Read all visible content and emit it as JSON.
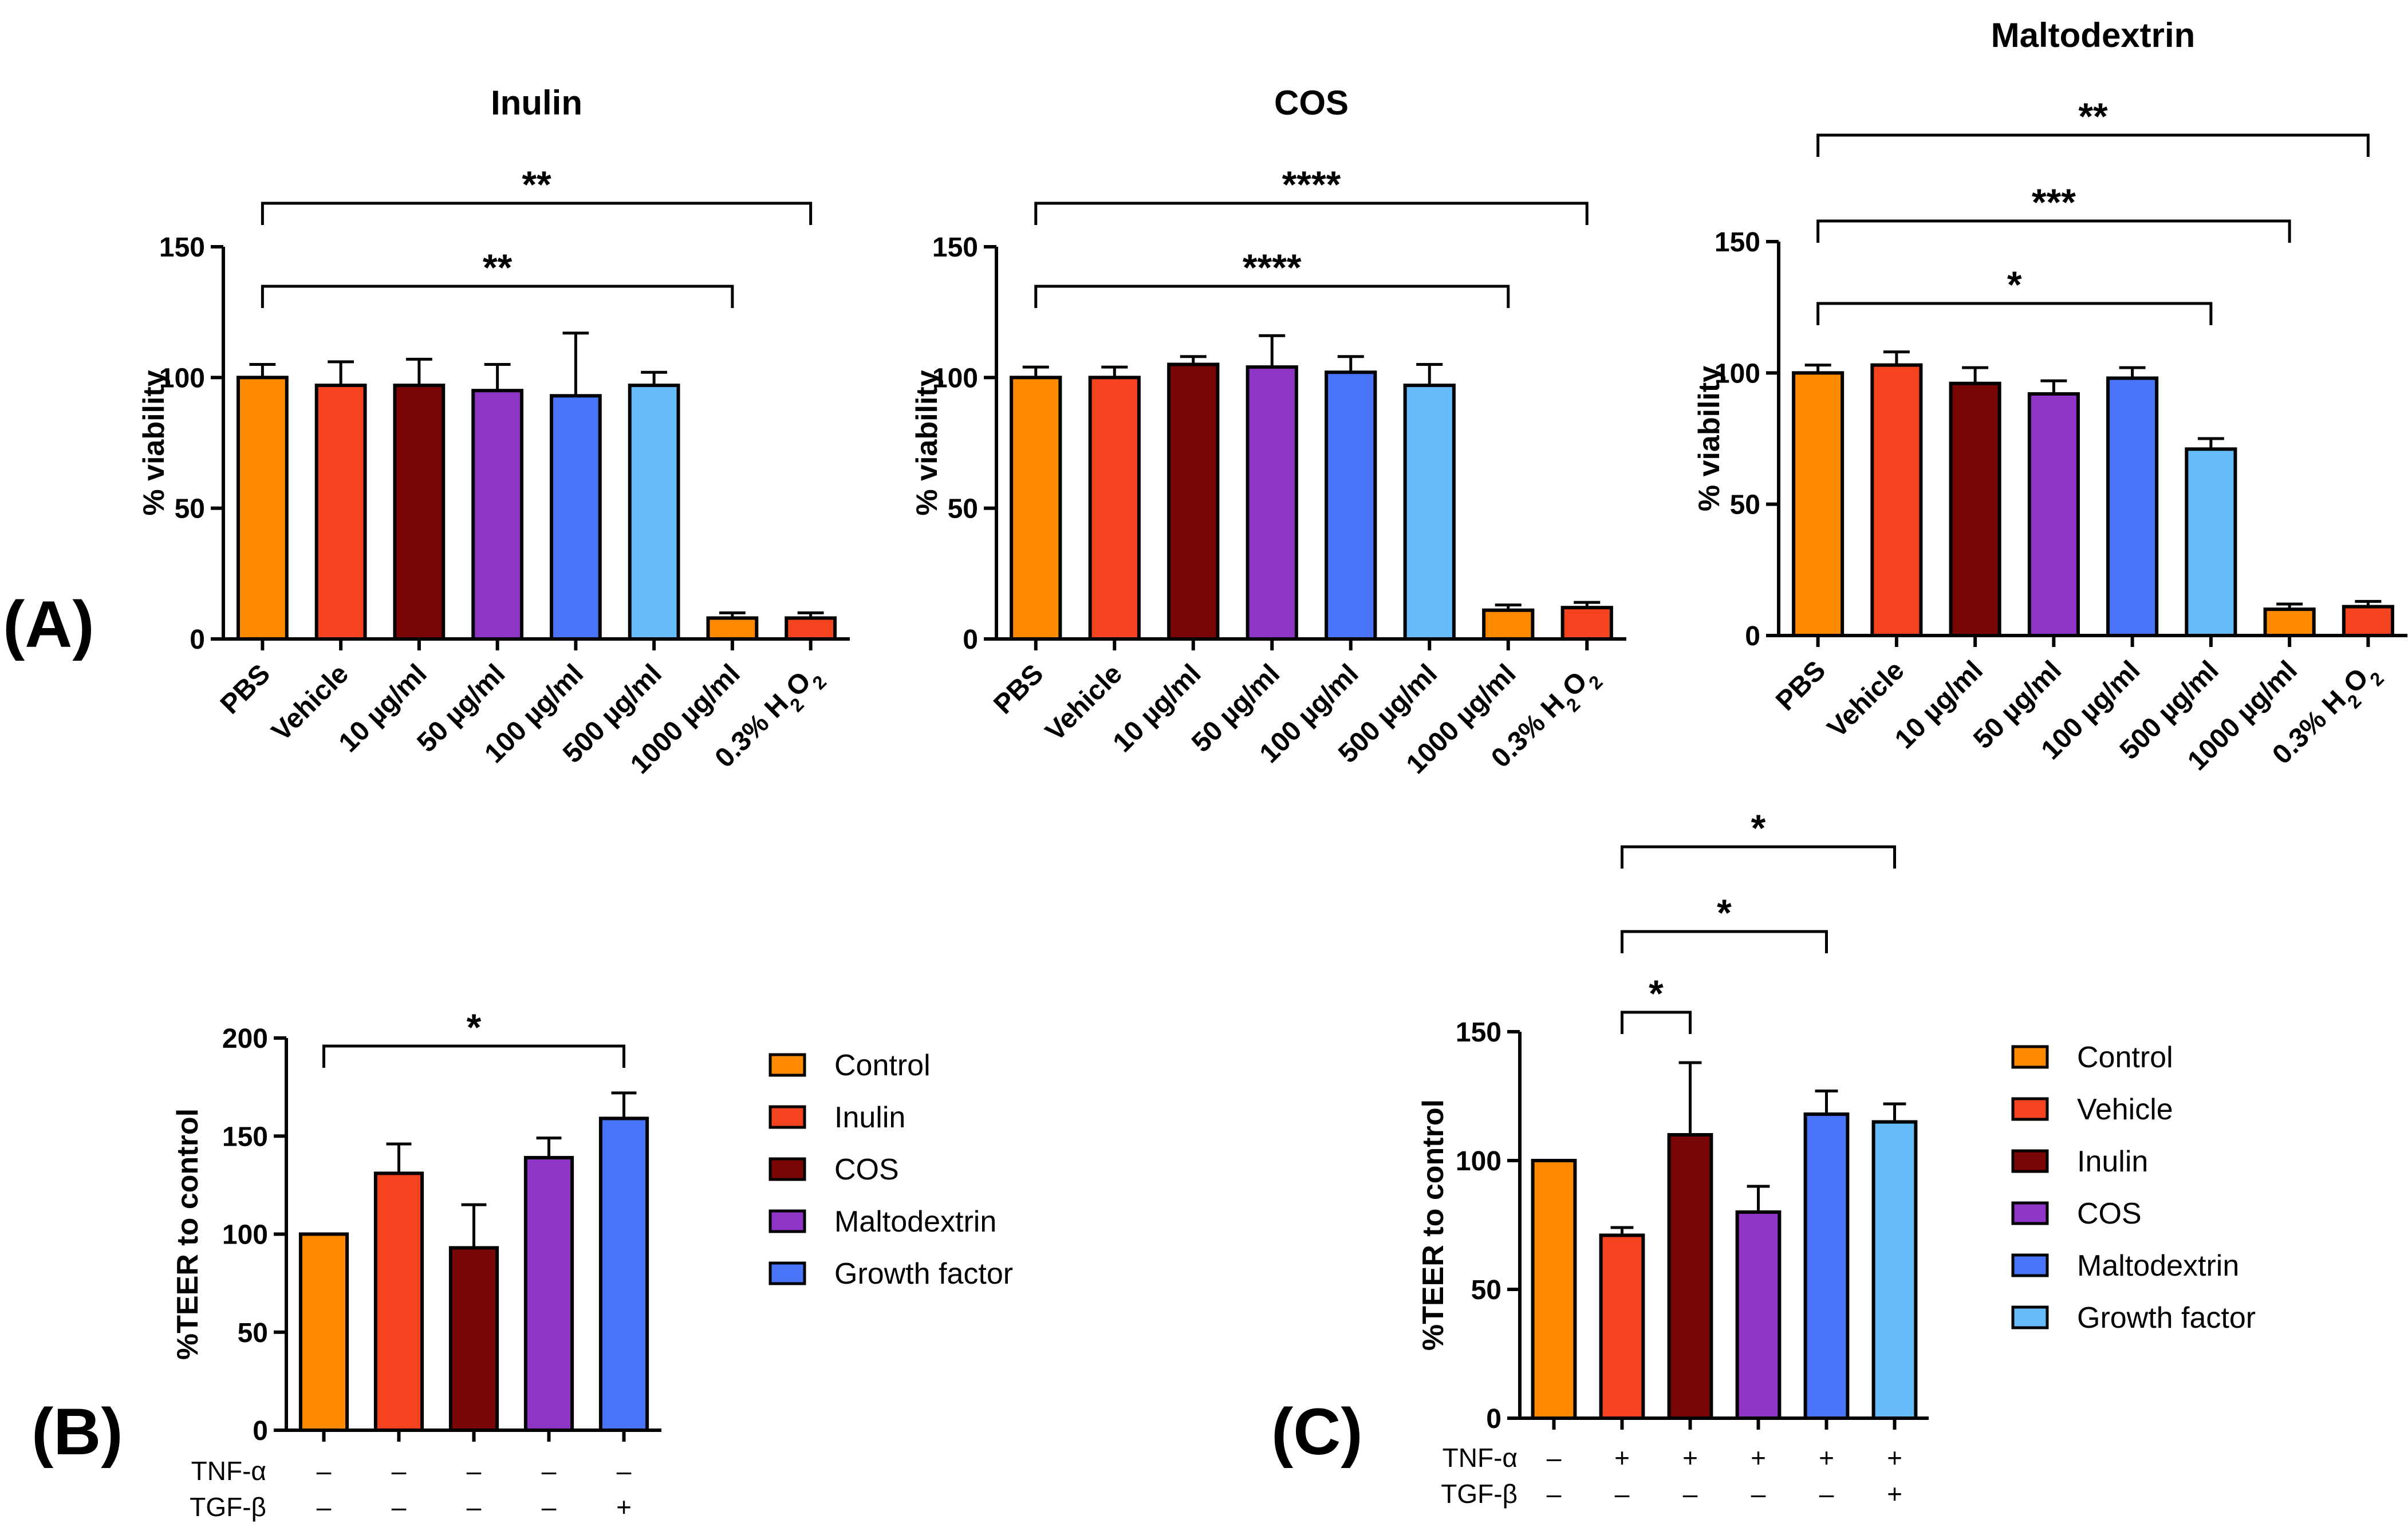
{
  "panel_labels": {
    "A": "(A)",
    "B": "(B)",
    "C": "(C)"
  },
  "colors": {
    "orange": "#FF8A00",
    "red": "#F5431F",
    "maroon": "#7A0505",
    "purple": "#8F35C6",
    "blue": "#4A74F7",
    "lightblue": "#66BBFA"
  },
  "chart_data": [
    {
      "type": "bar",
      "title": "Inulin",
      "ylabel": "% viability",
      "xlabel": "",
      "ylim": [
        0,
        150
      ],
      "yticks": [
        "0",
        "50",
        "100",
        "150"
      ],
      "categories": [
        "PBS",
        "Vehicle",
        "10 µg/ml",
        "50 µg/ml",
        "100 µg/ml",
        "500 µg/ml",
        "1000 µg/ml",
        "0.3% H2O2"
      ],
      "values": [
        100,
        97,
        97,
        95,
        93,
        97,
        8,
        8
      ],
      "errors": [
        5,
        9,
        10,
        10,
        24,
        5,
        2,
        2
      ],
      "bar_colors": [
        "orange",
        "red",
        "maroon",
        "purple",
        "blue",
        "lightblue",
        "orange",
        "red"
      ],
      "significance": [
        {
          "from": 0,
          "to": 6,
          "label": "**"
        },
        {
          "from": 0,
          "to": 7,
          "label": "**"
        }
      ]
    },
    {
      "type": "bar",
      "title": "COS",
      "ylabel": "% viability",
      "xlabel": "",
      "ylim": [
        0,
        150
      ],
      "yticks": [
        "0",
        "50",
        "100",
        "150"
      ],
      "categories": [
        "PBS",
        "Vehicle",
        "10 µg/ml",
        "50 µg/ml",
        "100 µg/ml",
        "500 µg/ml",
        "1000 µg/ml",
        "0.3% H2O2"
      ],
      "values": [
        100,
        100,
        105,
        104,
        102,
        97,
        11,
        12
      ],
      "errors": [
        4,
        4,
        3,
        12,
        6,
        8,
        2,
        2
      ],
      "bar_colors": [
        "orange",
        "red",
        "maroon",
        "purple",
        "blue",
        "lightblue",
        "orange",
        "red"
      ],
      "significance": [
        {
          "from": 0,
          "to": 6,
          "label": "****"
        },
        {
          "from": 0,
          "to": 7,
          "label": "****"
        }
      ]
    },
    {
      "type": "bar",
      "title": "Maltodextrin",
      "ylabel": "% viability",
      "xlabel": "",
      "ylim": [
        0,
        150
      ],
      "yticks": [
        "0",
        "50",
        "100",
        "150"
      ],
      "categories": [
        "PBS",
        "Vehicle",
        "10 µg/ml",
        "50 µg/ml",
        "100 µg/ml",
        "500 µg/ml",
        "1000 µg/ml",
        "0.3% H2O2"
      ],
      "values": [
        100,
        103,
        96,
        92,
        98,
        71,
        10,
        11
      ],
      "errors": [
        3,
        5,
        6,
        5,
        4,
        4,
        2,
        2
      ],
      "bar_colors": [
        "orange",
        "red",
        "maroon",
        "purple",
        "blue",
        "lightblue",
        "orange",
        "red"
      ],
      "significance": [
        {
          "from": 0,
          "to": 5,
          "label": "*"
        },
        {
          "from": 0,
          "to": 6,
          "label": "***"
        },
        {
          "from": 0,
          "to": 7,
          "label": "**"
        }
      ]
    },
    {
      "type": "bar",
      "title": "",
      "ylabel": "%TEER to control",
      "xlabel": "",
      "ylim": [
        0,
        200
      ],
      "yticks": [
        "0",
        "50",
        "100",
        "150",
        "200"
      ],
      "categories": [
        "Control",
        "Inulin",
        "COS",
        "Maltodextrin",
        "Growth factor"
      ],
      "values": [
        100,
        131,
        93,
        139,
        159
      ],
      "errors": [
        0,
        15,
        22,
        10,
        13
      ],
      "bar_colors": [
        "orange",
        "red",
        "maroon",
        "purple",
        "blue"
      ],
      "significance": [
        {
          "from": 0,
          "to": 4,
          "label": "*"
        }
      ],
      "treatments": [
        {
          "label": "TNF-α",
          "marks": [
            "–",
            "–",
            "–",
            "–",
            "–"
          ]
        },
        {
          "label": "TGF-β",
          "marks": [
            "–",
            "–",
            "–",
            "–",
            "+"
          ]
        }
      ],
      "legend": [
        {
          "label": "Control",
          "color": "orange"
        },
        {
          "label": "Inulin",
          "color": "red"
        },
        {
          "label": "COS",
          "color": "maroon"
        },
        {
          "label": "Maltodextrin",
          "color": "purple"
        },
        {
          "label": "Growth factor",
          "color": "blue"
        }
      ]
    },
    {
      "type": "bar",
      "title": "",
      "ylabel": "%TEER to control",
      "xlabel": "",
      "ylim": [
        0,
        150
      ],
      "yticks": [
        "0",
        "50",
        "100",
        "150"
      ],
      "categories": [
        "Control",
        "Vehicle",
        "Inulin",
        "COS",
        "Maltodextrin",
        "Growth factor"
      ],
      "values": [
        100,
        71,
        110,
        80,
        118,
        115
      ],
      "errors": [
        0,
        3,
        28,
        10,
        9,
        7
      ],
      "bar_colors": [
        "orange",
        "red",
        "maroon",
        "purple",
        "blue",
        "lightblue"
      ],
      "significance": [
        {
          "from": 1,
          "to": 2,
          "label": "*"
        },
        {
          "from": 1,
          "to": 4,
          "label": "*"
        },
        {
          "from": 1,
          "to": 5,
          "label": "*"
        }
      ],
      "treatments": [
        {
          "label": "TNF-α",
          "marks": [
            "–",
            "+",
            "+",
            "+",
            "+",
            "+"
          ]
        },
        {
          "label": "TGF-β",
          "marks": [
            "–",
            "–",
            "–",
            "–",
            "–",
            "+"
          ]
        }
      ],
      "legend": [
        {
          "label": "Control",
          "color": "orange"
        },
        {
          "label": "Vehicle",
          "color": "red"
        },
        {
          "label": "Inulin",
          "color": "maroon"
        },
        {
          "label": "COS",
          "color": "purple"
        },
        {
          "label": "Maltodextrin",
          "color": "blue"
        },
        {
          "label": "Growth factor",
          "color": "lightblue"
        }
      ]
    }
  ]
}
